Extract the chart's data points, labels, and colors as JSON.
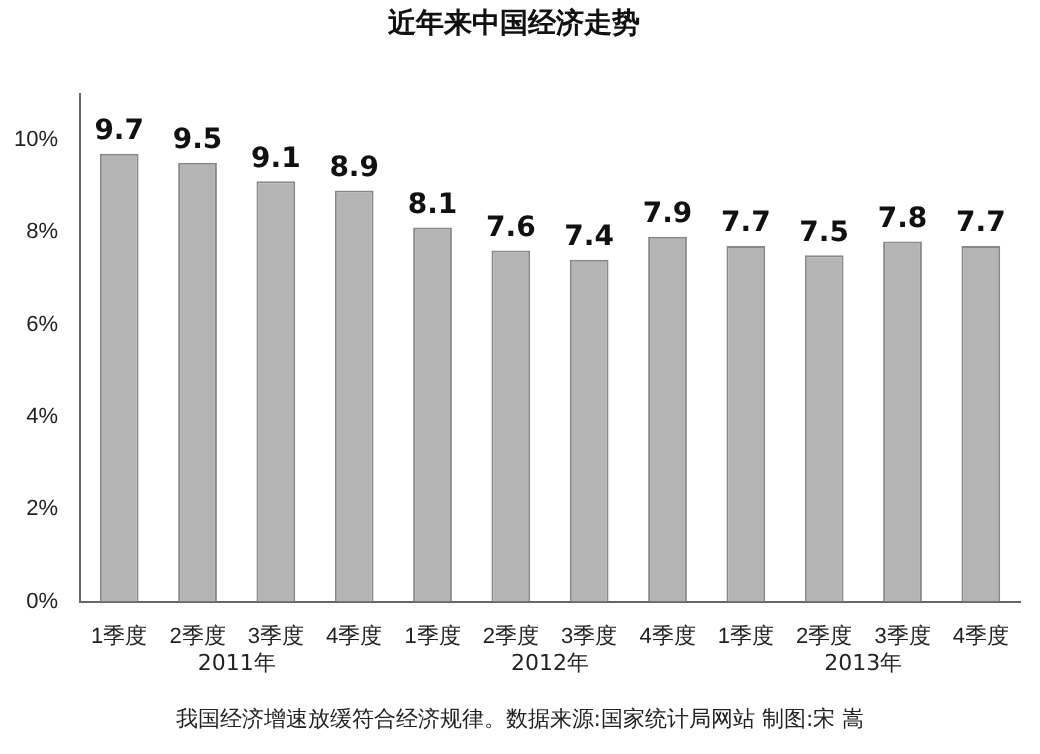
{
  "chart_data": {
    "type": "bar",
    "title": "近年来中国经济走势",
    "categories": [
      "1季度",
      "2季度",
      "3季度",
      "4季度",
      "1季度",
      "2季度",
      "3季度",
      "4季度",
      "1季度",
      "2季度",
      "3季度",
      "4季度"
    ],
    "values": [
      9.7,
      9.5,
      9.1,
      8.9,
      8.1,
      7.6,
      7.4,
      7.9,
      7.7,
      7.5,
      7.8,
      7.7
    ],
    "color": "#b4b4b4",
    "ylim": [
      0,
      11
    ],
    "yticks": [
      {
        "value": 0,
        "label": "0%"
      },
      {
        "value": 2,
        "label": "2%"
      },
      {
        "value": 4,
        "label": "4%"
      },
      {
        "value": 6,
        "label": "6%"
      },
      {
        "value": 8,
        "label": "8%"
      },
      {
        "value": 10,
        "label": "10%"
      }
    ],
    "grid": false,
    "legend": false,
    "data_labels": true,
    "annotations": [
      "2011年",
      "2012年",
      "2013年",
      "我国经济增速放缓符合经济规律。数据来源:国家统计局网站 制图:宋 嵩"
    ]
  }
}
